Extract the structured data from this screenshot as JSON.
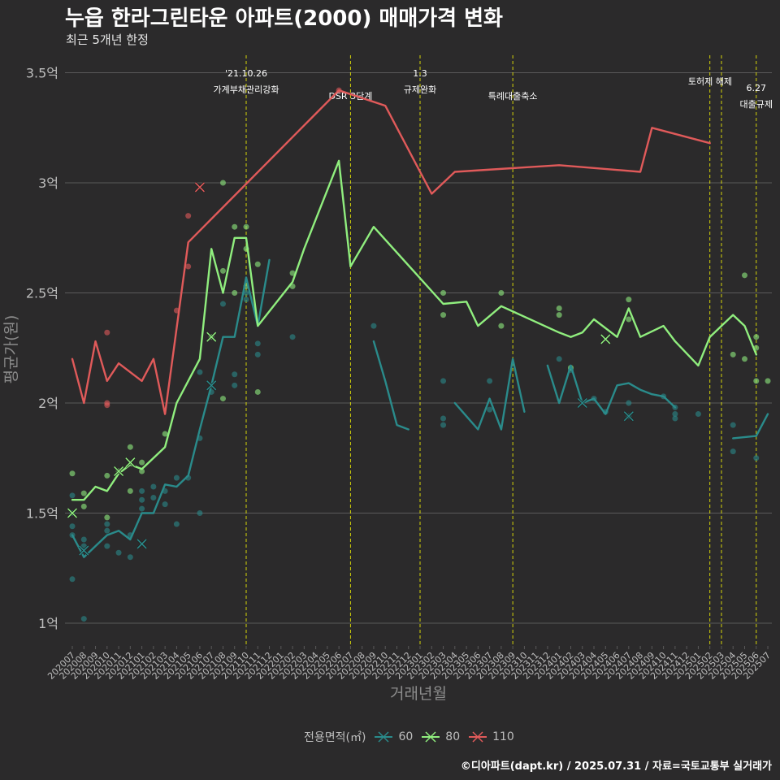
{
  "title": "누읍 한라그린타운 아파트(2000) 매매가격 변화",
  "subtitle": "최근 5개년 한정",
  "caption": "©디아파트(dapt.kr) / 2025.07.31 / 자료=국토교통부 실거래가",
  "legend": {
    "title": "전용면적(㎡)"
  },
  "colors": {
    "background": "#2b2a2b",
    "grid": "#5a595a",
    "text": "#bdbdbd",
    "event_line": "#ffff00",
    "s60": "#2a8b8b",
    "s80": "#90ee7e",
    "s110": "#e05a5a"
  },
  "chart_data": {
    "type": "line",
    "title": "누읍 한라그린타운 아파트(2000) 매매가격 변화",
    "subtitle": "최근 5개년 한정",
    "xlabel": "거래년월",
    "ylabel": "평균가(원)",
    "x": [
      "202007",
      "202008",
      "202009",
      "202010",
      "202011",
      "202012",
      "202101",
      "202102",
      "202103",
      "202104",
      "202105",
      "202106",
      "202107",
      "202108",
      "202109",
      "202110",
      "202111",
      "202112",
      "202201",
      "202202",
      "202203",
      "202204",
      "202205",
      "202206",
      "202207",
      "202208",
      "202209",
      "202210",
      "202211",
      "202212",
      "202301",
      "202302",
      "202303",
      "202304",
      "202305",
      "202306",
      "202307",
      "202308",
      "202309",
      "202310",
      "202311",
      "202312",
      "202401",
      "202402",
      "202403",
      "202404",
      "202405",
      "202406",
      "202407",
      "202408",
      "202409",
      "202410",
      "202411",
      "202412",
      "202501",
      "202502",
      "202503",
      "202504",
      "202505",
      "202506",
      "202507"
    ],
    "ylim": [
      0.9,
      3.6
    ],
    "yticks": [
      1,
      1.5,
      2,
      2.5,
      3,
      3.5
    ],
    "ytick_labels": [
      "1억",
      "1.5억",
      "2억",
      "2.5억",
      "3억",
      "3.5억"
    ],
    "grid": true,
    "legend_position": "bottom",
    "series": [
      {
        "name": "60",
        "line": [
          [
            "202007",
            1.4
          ],
          [
            "202008",
            1.3
          ],
          [
            "202009",
            1.35
          ],
          [
            "202010",
            1.4
          ],
          [
            "202011",
            1.42
          ],
          [
            "202012",
            1.38
          ],
          [
            "202101",
            1.5
          ],
          [
            "202102",
            1.5
          ],
          [
            "202103",
            1.63
          ],
          [
            "202104",
            1.62
          ],
          [
            "202105",
            1.67
          ],
          [
            "202106",
            1.88
          ],
          [
            "202107",
            2.08
          ],
          [
            "202108",
            2.3
          ],
          [
            "202109",
            2.3
          ],
          [
            "202110",
            2.57
          ],
          [
            "202111",
            2.35
          ],
          [
            "202112",
            2.65
          ],
          [
            null,
            null
          ],
          [
            "202209",
            2.28
          ],
          [
            "202210",
            2.1
          ],
          [
            "202211",
            1.9
          ],
          [
            "202212",
            1.88
          ],
          [
            null,
            null
          ],
          [
            "202304",
            2.0
          ],
          [
            "202305",
            1.94
          ],
          [
            "202306",
            1.88
          ],
          [
            "202307",
            2.02
          ],
          [
            "202308",
            1.88
          ],
          [
            "202309",
            2.2
          ],
          [
            "202310",
            1.96
          ],
          [
            null,
            null
          ],
          [
            "202312",
            2.17
          ],
          [
            "202401",
            2.0
          ],
          [
            "202402",
            2.17
          ],
          [
            "202403",
            2.0
          ],
          [
            "202404",
            2.02
          ],
          [
            "202405",
            1.95
          ],
          [
            "202406",
            2.08
          ],
          [
            "202407",
            2.09
          ],
          [
            "202408",
            2.06
          ],
          [
            "202409",
            2.04
          ],
          [
            "202410",
            2.03
          ],
          [
            "202411",
            1.98
          ],
          [
            null,
            null
          ],
          [
            "202504",
            1.84
          ],
          [
            "202506",
            1.85
          ],
          [
            "202507",
            1.95
          ]
        ],
        "points": [
          [
            "202007",
            1.58
          ],
          [
            "202007",
            1.5
          ],
          [
            "202007",
            1.44
          ],
          [
            "202007",
            1.4
          ],
          [
            "202007",
            1.2
          ],
          [
            "202008",
            1.38
          ],
          [
            "202008",
            1.35
          ],
          [
            "202008",
            1.02
          ],
          [
            "202010",
            1.45
          ],
          [
            "202010",
            1.42
          ],
          [
            "202010",
            1.35
          ],
          [
            "202011",
            1.32
          ],
          [
            "202012",
            1.4
          ],
          [
            "202012",
            1.3
          ],
          [
            "202101",
            1.6
          ],
          [
            "202101",
            1.56
          ],
          [
            "202101",
            1.52
          ],
          [
            "202102",
            1.62
          ],
          [
            "202102",
            1.57
          ],
          [
            "202103",
            1.54
          ],
          [
            "202103",
            1.6
          ],
          [
            "202104",
            1.66
          ],
          [
            "202104",
            1.45
          ],
          [
            "202105",
            1.66
          ],
          [
            "202106",
            1.5
          ],
          [
            "202106",
            1.84
          ],
          [
            "202106",
            2.14
          ],
          [
            "202107",
            2.05
          ],
          [
            "202108",
            2.45
          ],
          [
            "202109",
            2.08
          ],
          [
            "202109",
            2.13
          ],
          [
            "202110",
            2.5
          ],
          [
            "202110",
            2.47
          ],
          [
            "202111",
            2.27
          ],
          [
            "202111",
            2.22
          ],
          [
            "202202",
            2.3
          ],
          [
            "202209",
            2.35
          ],
          [
            "202303",
            2.1
          ],
          [
            "202303",
            1.9
          ],
          [
            "202303",
            1.93
          ],
          [
            "202307",
            2.1
          ],
          [
            "202307",
            1.97
          ],
          [
            "202401",
            2.2
          ],
          [
            "202402",
            2.15
          ],
          [
            "202404",
            2.02
          ],
          [
            "202405",
            1.96
          ],
          [
            "202407",
            2.0
          ],
          [
            "202407",
            1.94
          ],
          [
            "202410",
            2.03
          ],
          [
            "202411",
            1.98
          ],
          [
            "202411",
            1.95
          ],
          [
            "202411",
            1.93
          ],
          [
            "202501",
            1.95
          ],
          [
            "202504",
            1.9
          ],
          [
            "202504",
            1.78
          ],
          [
            "202506",
            1.75
          ]
        ],
        "crosses": [
          [
            "202008",
            1.33
          ],
          [
            "202101",
            1.36
          ],
          [
            "202107",
            2.08
          ],
          [
            "202403",
            2.0
          ],
          [
            "202407",
            1.94
          ]
        ]
      },
      {
        "name": "80",
        "line": [
          [
            "202007",
            1.56
          ],
          [
            "202008",
            1.56
          ],
          [
            "202009",
            1.62
          ],
          [
            "202010",
            1.6
          ],
          [
            "202011",
            1.68
          ],
          [
            "202012",
            1.72
          ],
          [
            "202101",
            1.7
          ],
          [
            "202103",
            1.8
          ],
          [
            "202104",
            2.0
          ],
          [
            "202106",
            2.2
          ],
          [
            "202107",
            2.7
          ],
          [
            "202108",
            2.5
          ],
          [
            "202109",
            2.75
          ],
          [
            "202110",
            2.75
          ],
          [
            "202111",
            2.35
          ],
          [
            "202202",
            2.55
          ],
          [
            "202203",
            2.7
          ],
          [
            "202206",
            3.1
          ],
          [
            "202207",
            2.62
          ],
          [
            "202209",
            2.8
          ],
          [
            "202303",
            2.45
          ],
          [
            "202305",
            2.46
          ],
          [
            "202306",
            2.35
          ],
          [
            "202308",
            2.44
          ],
          [
            "202401",
            2.32
          ],
          [
            "202402",
            2.3
          ],
          [
            "202403",
            2.32
          ],
          [
            "202404",
            2.38
          ],
          [
            "202406",
            2.3
          ],
          [
            "202407",
            2.43
          ],
          [
            "202408",
            2.3
          ],
          [
            "202410",
            2.35
          ],
          [
            "202411",
            2.28
          ],
          [
            "202501",
            2.17
          ],
          [
            "202502",
            2.3
          ],
          [
            "202504",
            2.4
          ],
          [
            "202505",
            2.35
          ],
          [
            "202506",
            2.22
          ]
        ],
        "points": [
          [
            "202007",
            1.68
          ],
          [
            "202008",
            1.59
          ],
          [
            "202008",
            1.53
          ],
          [
            "202010",
            1.67
          ],
          [
            "202010",
            1.48
          ],
          [
            "202011",
            1.69
          ],
          [
            "202012",
            1.8
          ],
          [
            "202012",
            1.6
          ],
          [
            "202101",
            1.73
          ],
          [
            "202101",
            1.69
          ],
          [
            "202103",
            1.86
          ],
          [
            "202107",
            2.3
          ],
          [
            "202108",
            3.0
          ],
          [
            "202108",
            2.6
          ],
          [
            "202108",
            2.02
          ],
          [
            "202109",
            2.8
          ],
          [
            "202109",
            2.5
          ],
          [
            "202110",
            2.8
          ],
          [
            "202110",
            2.7
          ],
          [
            "202110",
            2.53
          ],
          [
            "202111",
            2.63
          ],
          [
            "202111",
            2.05
          ],
          [
            "202202",
            2.59
          ],
          [
            "202202",
            2.53
          ],
          [
            "202303",
            2.5
          ],
          [
            "202303",
            2.4
          ],
          [
            "202308",
            2.5
          ],
          [
            "202308",
            2.35
          ],
          [
            "202401",
            2.43
          ],
          [
            "202401",
            2.4
          ],
          [
            "202402",
            2.16
          ],
          [
            "202407",
            2.47
          ],
          [
            "202407",
            2.38
          ],
          [
            "202504",
            2.22
          ],
          [
            "202505",
            2.58
          ],
          [
            "202505",
            2.2
          ],
          [
            "202506",
            2.3
          ],
          [
            "202506",
            2.25
          ],
          [
            "202506",
            2.1
          ],
          [
            "202507",
            2.1
          ]
        ],
        "crosses": [
          [
            "202007",
            1.5
          ],
          [
            "202011",
            1.69
          ],
          [
            "202012",
            1.73
          ],
          [
            "202107",
            2.3
          ],
          [
            "202405",
            2.29
          ]
        ]
      },
      {
        "name": "110",
        "line": [
          [
            "202007",
            2.2
          ],
          [
            "202008",
            2.0
          ],
          [
            "202009",
            2.28
          ],
          [
            "202010",
            2.1
          ],
          [
            "202011",
            2.18
          ],
          [
            "202101",
            2.1
          ],
          [
            "202102",
            2.2
          ],
          [
            "202103",
            1.95
          ],
          [
            "202105",
            2.73
          ],
          [
            "202206",
            3.42
          ],
          [
            "202210",
            3.35
          ],
          [
            "202302",
            2.95
          ],
          [
            "202304",
            3.05
          ],
          [
            "202401",
            3.08
          ],
          [
            "202408",
            3.05
          ],
          [
            "202409",
            3.25
          ],
          [
            "202502",
            3.18
          ]
        ],
        "points": [
          [
            "202010",
            2.32
          ],
          [
            "202010",
            2.0
          ],
          [
            "202010",
            1.99
          ],
          [
            "202104",
            2.42
          ],
          [
            "202105",
            2.85
          ],
          [
            "202105",
            2.62
          ],
          [
            "202206",
            3.42
          ]
        ],
        "crosses": [
          [
            "202106",
            2.98
          ]
        ]
      }
    ],
    "annotations": [
      {
        "x": "202110",
        "lines": [
          "'21.10.26",
          "가계부채관리강화"
        ]
      },
      {
        "x": "202207",
        "lines": [
          "DSR 3단계"
        ]
      },
      {
        "x": "202301",
        "lines": [
          "1.3",
          "규제완화"
        ]
      },
      {
        "x": "202309",
        "lines": [
          "특례대출축소"
        ]
      },
      {
        "x": "202502",
        "lines": []
      },
      {
        "x": "202503",
        "lines": [
          "토허제 해제"
        ]
      },
      {
        "x": "202506",
        "lines": [
          "6.27",
          "대출규제"
        ]
      }
    ]
  }
}
